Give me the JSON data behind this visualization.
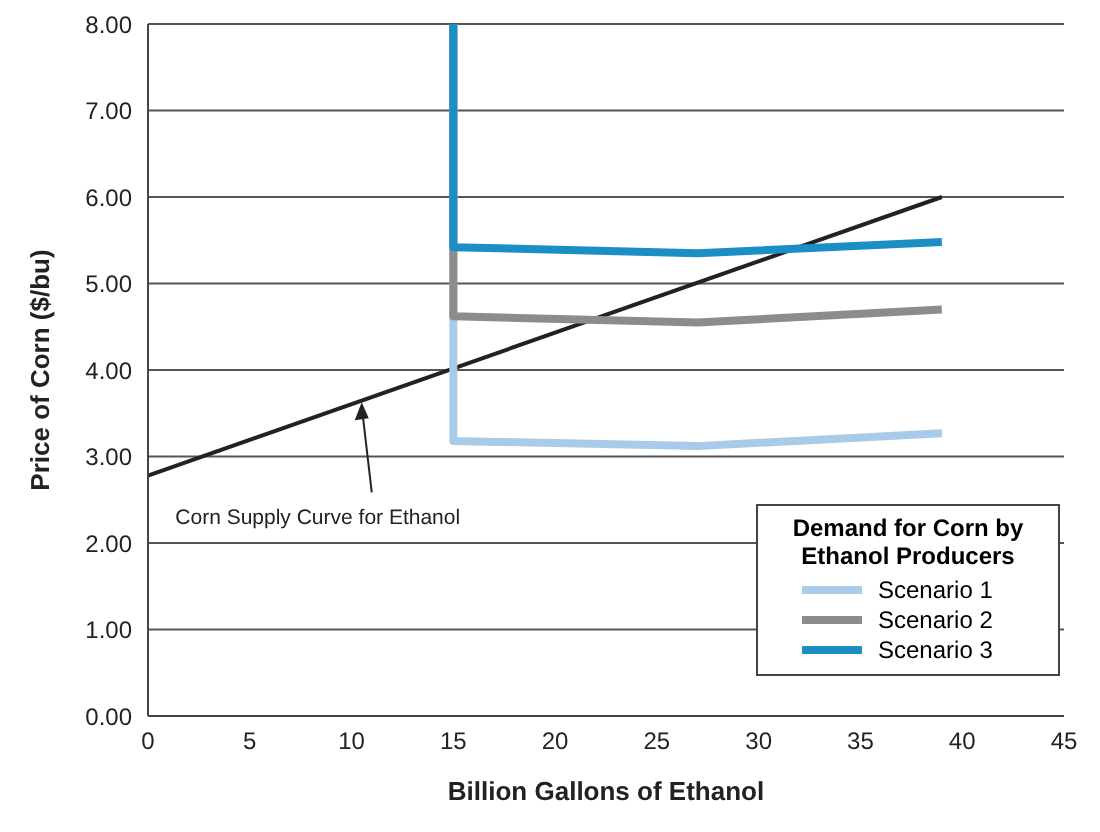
{
  "chart_data": {
    "type": "line",
    "xlabel": "Billion Gallons of Ethanol",
    "ylabel": "Price of Corn ($/bu)",
    "legend_title": "Demand for Corn by Ethanol Producers",
    "xlim": [
      0,
      45
    ],
    "xticks": [
      0,
      5,
      10,
      15,
      20,
      25,
      30,
      35,
      40,
      45
    ],
    "ylim": [
      0,
      8
    ],
    "yticks": [
      {
        "value": 0,
        "label": "0.00"
      },
      {
        "value": 1,
        "label": "1.00"
      },
      {
        "value": 2,
        "label": "2.00"
      },
      {
        "value": 3,
        "label": "3.00"
      },
      {
        "value": 4,
        "label": "4.00"
      },
      {
        "value": 5,
        "label": "5.00"
      },
      {
        "value": 6,
        "label": "6.00"
      },
      {
        "value": 7,
        "label": "7.00"
      },
      {
        "value": 8,
        "label": "8.00"
      }
    ],
    "grid": "y",
    "legend": "bottom right",
    "marker": "none",
    "line_style": "solid",
    "series": [
      {
        "color": "#222222",
        "x": [
          0,
          39
        ],
        "values": [
          2.78,
          6.0
        ]
      },
      {
        "name": "Scenario 1",
        "color": "#a9cbea",
        "x": [
          15,
          15,
          27,
          39
        ],
        "values": [
          8,
          3.18,
          3.12,
          3.27
        ]
      },
      {
        "name": "Scenario 2",
        "color": "#8c8c8c",
        "x": [
          15,
          15,
          27,
          39
        ],
        "values": [
          8,
          4.62,
          4.55,
          4.7
        ]
      },
      {
        "name": "Scenario 3",
        "color": "#1b8fc4",
        "x": [
          15,
          15,
          27,
          39
        ],
        "values": [
          8,
          5.42,
          5.35,
          5.48
        ]
      }
    ],
    "annotations": [
      {
        "text": "Corn Supply Curve for Ethanol",
        "x": 10.5,
        "y": 3.65
      }
    ]
  }
}
